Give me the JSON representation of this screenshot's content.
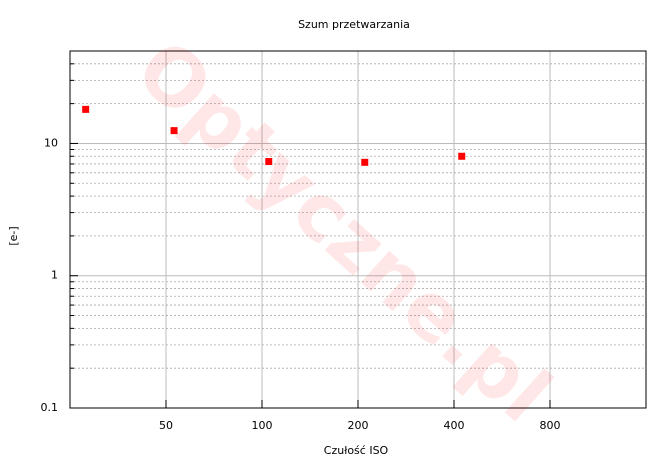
{
  "chart_data": {
    "type": "scatter",
    "title": "Szum przetwarzania",
    "xlabel": "Czułość ISO",
    "ylabel": "[e-]",
    "watermark": "Optyczne.pl",
    "xscale": "log",
    "yscale": "log",
    "grid": true,
    "xlim": [
      25,
      1600
    ],
    "xticks": [
      50,
      100,
      200,
      400,
      800
    ],
    "ylim": [
      0.1,
      50
    ],
    "yticks": [
      0.1,
      1,
      10
    ],
    "series": [
      {
        "color": "#ff0000",
        "x": [
          28,
          53,
          105,
          210,
          423
        ],
        "values": [
          18.1,
          12.5,
          7.3,
          7.2,
          8.0
        ]
      }
    ]
  }
}
